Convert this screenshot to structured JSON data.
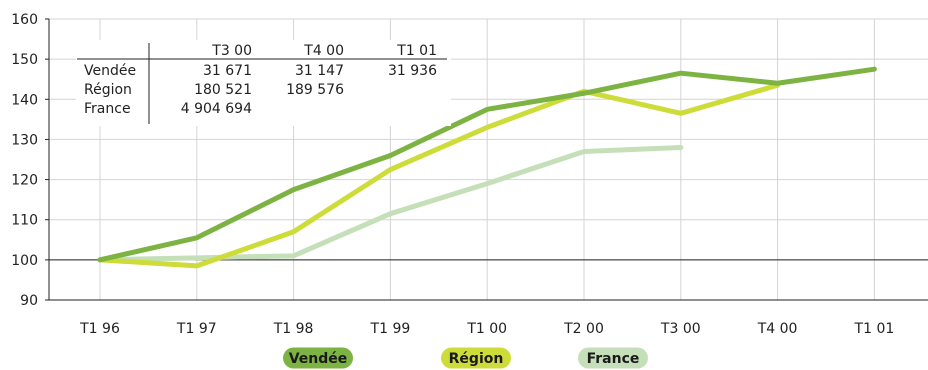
{
  "chart_data": {
    "type": "line",
    "categories": [
      "T1 96",
      "T1 97",
      "T1 98",
      "T1 99",
      "T1 00",
      "T2 00",
      "T3 00",
      "T4 00",
      "T1 01"
    ],
    "y_ticks": [
      "90",
      "100",
      "110",
      "120",
      "130",
      "140",
      "150",
      "160"
    ],
    "ylim": [
      90,
      160
    ],
    "reference_line": 100,
    "grid": true,
    "legend_position": "bottom-center",
    "series": [
      {
        "name": "Vendée",
        "color": "#7cb342",
        "values": [
          100,
          105.5,
          117.5,
          126,
          137.5,
          141.5,
          146.5,
          144,
          147.5
        ]
      },
      {
        "name": "Région",
        "color": "#cddc39",
        "values": [
          100,
          98.5,
          107,
          122.5,
          133,
          142,
          136.5,
          143.5,
          null
        ]
      },
      {
        "name": "France",
        "color": "#c5dfb9",
        "values": [
          100,
          100.5,
          101,
          111.5,
          119,
          127,
          128,
          null,
          null
        ]
      }
    ],
    "table": {
      "headers": [
        "T3 00",
        "T4 00",
        "T1 01"
      ],
      "rows": [
        {
          "label": "Vendée",
          "values": [
            "31 671",
            "31 147",
            "31 936"
          ]
        },
        {
          "label": "Région",
          "values": [
            "180 521",
            "189 576",
            ""
          ]
        },
        {
          "label": "France",
          "values": [
            "4 904 694",
            "",
            ""
          ]
        }
      ]
    }
  }
}
